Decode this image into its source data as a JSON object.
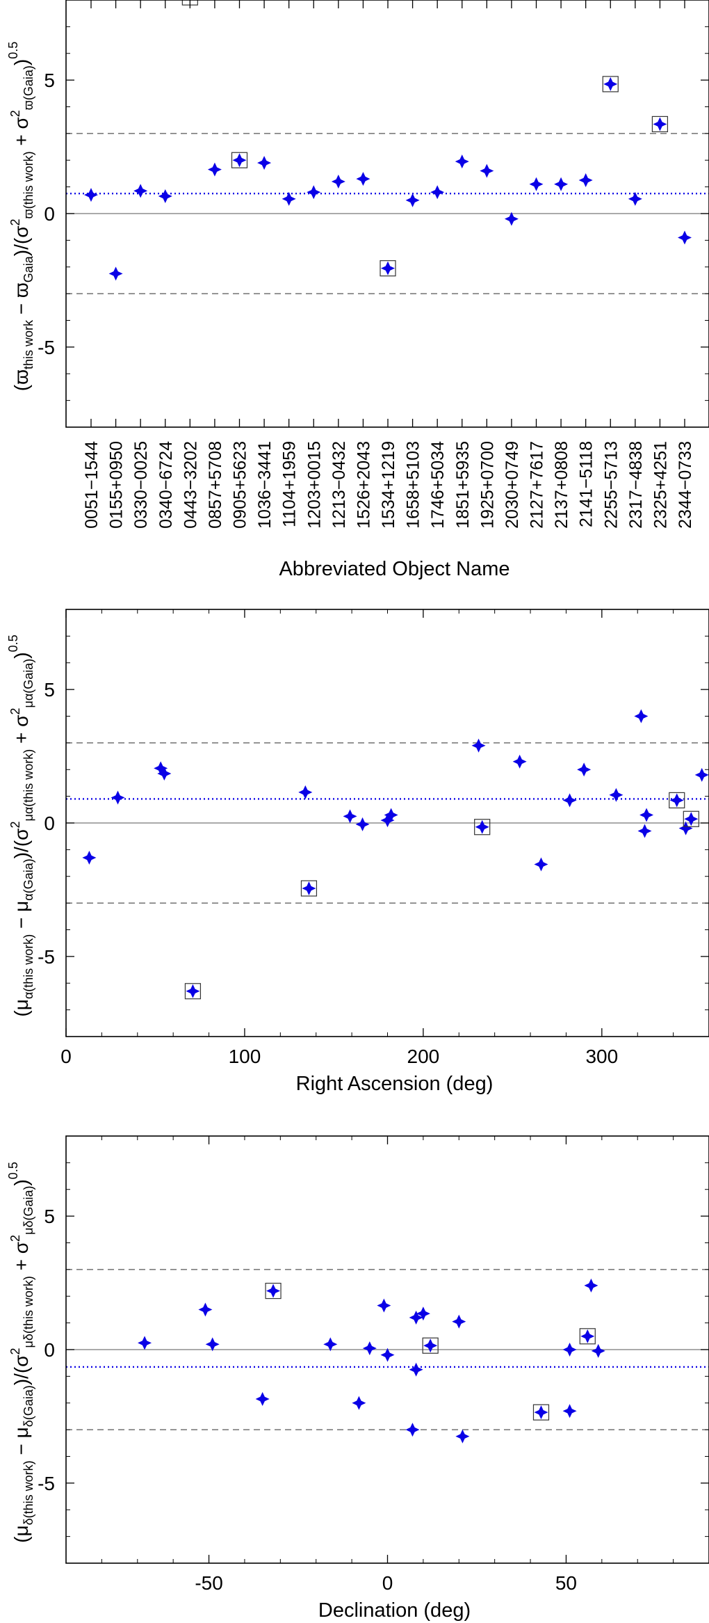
{
  "chart_data": [
    {
      "type": "scatter",
      "title": "",
      "xlabel": "Abbreviated Object Name",
      "ylabel": {
        "base": "(ϖ",
        "sub1": "this work",
        "mid1": " − ϖ",
        "sub2": "Gaia",
        "mid2": ")/(σ",
        "sub3": "ϖ(this work)",
        "sup3": "2",
        "mid3": " + σ",
        "sub4": "ϖ(Gaia)",
        "sup4": "2",
        "end": ")",
        "exp": "0.5"
      },
      "ylim": [
        -8,
        8
      ],
      "yticks": [
        -5,
        0,
        5
      ],
      "ytick_labels": [
        "-5",
        "0",
        "5"
      ],
      "hlines": {
        "zero": 0,
        "dashed": [
          -3,
          3
        ],
        "mean_dotted": 0.75
      },
      "categories": [
        "0051−1544",
        "0155+0950",
        "0330−0025",
        "0340−6724",
        "0443−3202",
        "0857+5708",
        "0905+5623",
        "1036−3441",
        "1104+1959",
        "1203+0015",
        "1213−0432",
        "1526+2043",
        "1534+1219",
        "1658+5103",
        "1746+5034",
        "1851+5935",
        "1925+0700",
        "2030+0749",
        "2127+7617",
        "2137+0808",
        "2141−5118",
        "2255−5713",
        "2317−4838",
        "2325+4251",
        "2344−0733"
      ],
      "points": [
        {
          "cat": 0,
          "y": 0.7,
          "boxed": false
        },
        {
          "cat": 1,
          "y": -2.25,
          "boxed": false
        },
        {
          "cat": 2,
          "y": 0.85,
          "boxed": false
        },
        {
          "cat": 3,
          "y": 0.65,
          "boxed": false
        },
        {
          "cat": 4,
          "y": 8.1,
          "boxed": true,
          "marker": false
        },
        {
          "cat": 5,
          "y": 1.65,
          "boxed": false
        },
        {
          "cat": 6,
          "y": 2.0,
          "boxed": true
        },
        {
          "cat": 7,
          "y": 1.9,
          "boxed": false
        },
        {
          "cat": 8,
          "y": 0.55,
          "boxed": false
        },
        {
          "cat": 9,
          "y": 0.8,
          "boxed": false
        },
        {
          "cat": 10,
          "y": 1.2,
          "boxed": false
        },
        {
          "cat": 11,
          "y": 1.3,
          "boxed": false
        },
        {
          "cat": 12,
          "y": -2.05,
          "boxed": true
        },
        {
          "cat": 13,
          "y": 0.5,
          "boxed": false
        },
        {
          "cat": 14,
          "y": 0.8,
          "boxed": false
        },
        {
          "cat": 15,
          "y": 1.95,
          "boxed": false
        },
        {
          "cat": 16,
          "y": 1.6,
          "boxed": false
        },
        {
          "cat": 17,
          "y": -0.2,
          "boxed": false
        },
        {
          "cat": 18,
          "y": 1.1,
          "boxed": false
        },
        {
          "cat": 19,
          "y": 1.1,
          "boxed": false
        },
        {
          "cat": 20,
          "y": 1.25,
          "boxed": false
        },
        {
          "cat": 21,
          "y": 4.85,
          "boxed": true
        },
        {
          "cat": 22,
          "y": 0.55,
          "boxed": false
        },
        {
          "cat": 23,
          "y": 3.35,
          "boxed": true
        },
        {
          "cat": 24,
          "y": -0.9,
          "boxed": false
        }
      ]
    },
    {
      "type": "scatter",
      "title": "",
      "xlabel": "Right Ascension (deg)",
      "ylabel": {
        "base": "(μ",
        "sub1": "α(this work)",
        "mid1": " − μ",
        "sub2": "α(Gaia)",
        "mid2": ")/(σ",
        "sub3": "μα(this work)",
        "sup3": "2",
        "mid3": " + σ",
        "sub4": "μα(Gaia)",
        "sup4": "2",
        "end": ")",
        "exp": "0.5"
      },
      "xlim": [
        0,
        360
      ],
      "xticks": [
        0,
        100,
        200,
        300
      ],
      "xtick_labels": [
        "0",
        "100",
        "200",
        "300"
      ],
      "ylim": [
        -8,
        8
      ],
      "yticks": [
        -5,
        0,
        5
      ],
      "ytick_labels": [
        "-5",
        "0",
        "5"
      ],
      "hlines": {
        "zero": 0,
        "dashed": [
          -3,
          3
        ],
        "mean_dotted": 0.9
      },
      "points": [
        {
          "x": 13,
          "y": -1.3,
          "boxed": false
        },
        {
          "x": 29,
          "y": 0.95,
          "boxed": false
        },
        {
          "x": 53,
          "y": 2.05,
          "boxed": false
        },
        {
          "x": 55,
          "y": 1.85,
          "boxed": false
        },
        {
          "x": 71,
          "y": -6.3,
          "boxed": true
        },
        {
          "x": 134,
          "y": 1.15,
          "boxed": false
        },
        {
          "x": 136,
          "y": -2.45,
          "boxed": true
        },
        {
          "x": 159,
          "y": 0.25,
          "boxed": false
        },
        {
          "x": 166,
          "y": -0.05,
          "boxed": false
        },
        {
          "x": 180,
          "y": 0.1,
          "boxed": false
        },
        {
          "x": 182,
          "y": 0.3,
          "boxed": false
        },
        {
          "x": 231,
          "y": 2.9,
          "boxed": false
        },
        {
          "x": 233,
          "y": -0.15,
          "boxed": true
        },
        {
          "x": 254,
          "y": 2.3,
          "boxed": false
        },
        {
          "x": 266,
          "y": -1.55,
          "boxed": false
        },
        {
          "x": 282,
          "y": 0.85,
          "boxed": false
        },
        {
          "x": 290,
          "y": 2.0,
          "boxed": false
        },
        {
          "x": 308,
          "y": 1.05,
          "boxed": false
        },
        {
          "x": 322,
          "y": 4.0,
          "boxed": false
        },
        {
          "x": 324,
          "y": -0.3,
          "boxed": false
        },
        {
          "x": 325,
          "y": 0.3,
          "boxed": false
        },
        {
          "x": 342,
          "y": 0.85,
          "boxed": true
        },
        {
          "x": 347,
          "y": -0.2,
          "boxed": false
        },
        {
          "x": 350,
          "y": 0.15,
          "boxed": true
        },
        {
          "x": 356,
          "y": 1.8,
          "boxed": false
        }
      ]
    },
    {
      "type": "scatter",
      "title": "",
      "xlabel": "Declination (deg)",
      "ylabel": {
        "base": "(μ",
        "sub1": "δ(this work)",
        "mid1": " − μ",
        "sub2": "δ(Gaia)",
        "mid2": ")/(σ",
        "sub3": "μδ(this work)",
        "sup3": "2",
        "mid3": " + σ",
        "sub4": "μδ(Gaia)",
        "sup4": "2",
        "end": ")",
        "exp": "0.5"
      },
      "xlim": [
        -90,
        90
      ],
      "xticks": [
        -50,
        0,
        50
      ],
      "xtick_labels": [
        "-50",
        "0",
        "50"
      ],
      "ylim": [
        -8,
        8
      ],
      "yticks": [
        -5,
        0,
        5
      ],
      "ytick_labels": [
        "-5",
        "0",
        "5"
      ],
      "hlines": {
        "zero": 0,
        "dashed": [
          -3,
          3
        ],
        "mean_dotted": -0.65
      },
      "points": [
        {
          "x": -68,
          "y": 0.25,
          "boxed": false
        },
        {
          "x": -51,
          "y": 1.5,
          "boxed": false
        },
        {
          "x": -49,
          "y": 0.2,
          "boxed": false
        },
        {
          "x": -35,
          "y": -1.85,
          "boxed": false
        },
        {
          "x": -32,
          "y": 2.2,
          "boxed": true
        },
        {
          "x": -16,
          "y": 0.2,
          "boxed": false
        },
        {
          "x": -8,
          "y": -2.0,
          "boxed": false
        },
        {
          "x": -5,
          "y": 0.05,
          "boxed": false
        },
        {
          "x": -1,
          "y": 1.65,
          "boxed": false
        },
        {
          "x": 0,
          "y": -0.2,
          "boxed": false
        },
        {
          "x": 7,
          "y": -3.0,
          "boxed": false
        },
        {
          "x": 8,
          "y": -0.75,
          "boxed": false
        },
        {
          "x": 8,
          "y": 1.2,
          "boxed": false
        },
        {
          "x": 10,
          "y": 1.35,
          "boxed": false
        },
        {
          "x": 12,
          "y": 0.15,
          "boxed": true
        },
        {
          "x": 20,
          "y": 1.05,
          "boxed": false
        },
        {
          "x": 21,
          "y": -3.25,
          "boxed": false
        },
        {
          "x": 43,
          "y": -2.35,
          "boxed": true
        },
        {
          "x": 51,
          "y": 0.0,
          "boxed": false
        },
        {
          "x": 51,
          "y": -2.3,
          "boxed": false
        },
        {
          "x": 56,
          "y": 0.5,
          "boxed": true
        },
        {
          "x": 57,
          "y": 2.4,
          "boxed": false
        },
        {
          "x": 59,
          "y": -0.05,
          "boxed": false
        }
      ]
    }
  ],
  "style": {
    "marker_color": "#0a00e6",
    "mean_line_color": "#0a00e6",
    "dashed_line_color": "#555555",
    "zero_line_color": "#777777",
    "box_color": "#333333",
    "marker_shape": "four-point-star"
  }
}
